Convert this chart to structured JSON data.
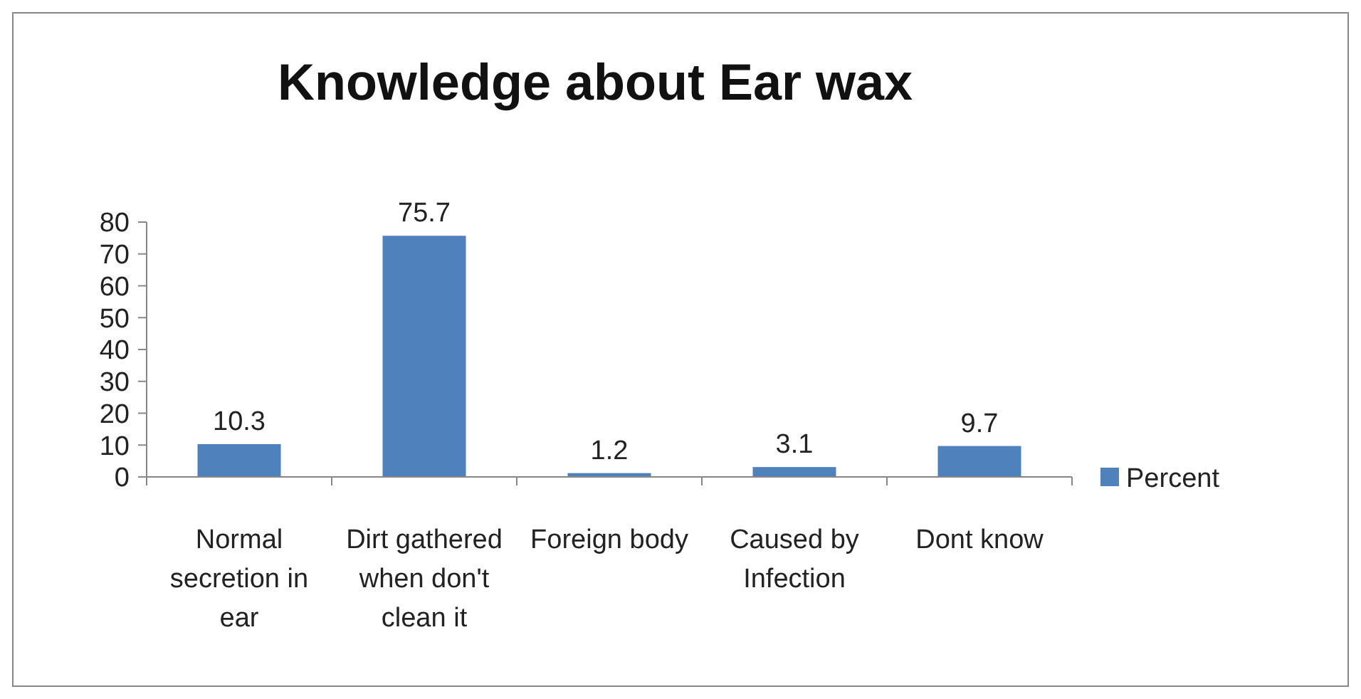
{
  "chart_data": {
    "type": "bar",
    "title": "Knowledge about Ear wax",
    "categories": [
      "Normal secretion in ear",
      "Dirt gathered when don't clean it",
      "Foreign body",
      "Caused by Infection",
      "Dont know"
    ],
    "series": [
      {
        "name": "Percent",
        "color": "#4f81bd",
        "values": [
          10.3,
          75.7,
          1.2,
          3.1,
          9.7
        ]
      }
    ],
    "ylim": [
      0,
      80
    ],
    "yticks": [
      0,
      10,
      20,
      30,
      40,
      50,
      60,
      70,
      80
    ],
    "grid": false,
    "legend": "right",
    "data_labels": true
  }
}
